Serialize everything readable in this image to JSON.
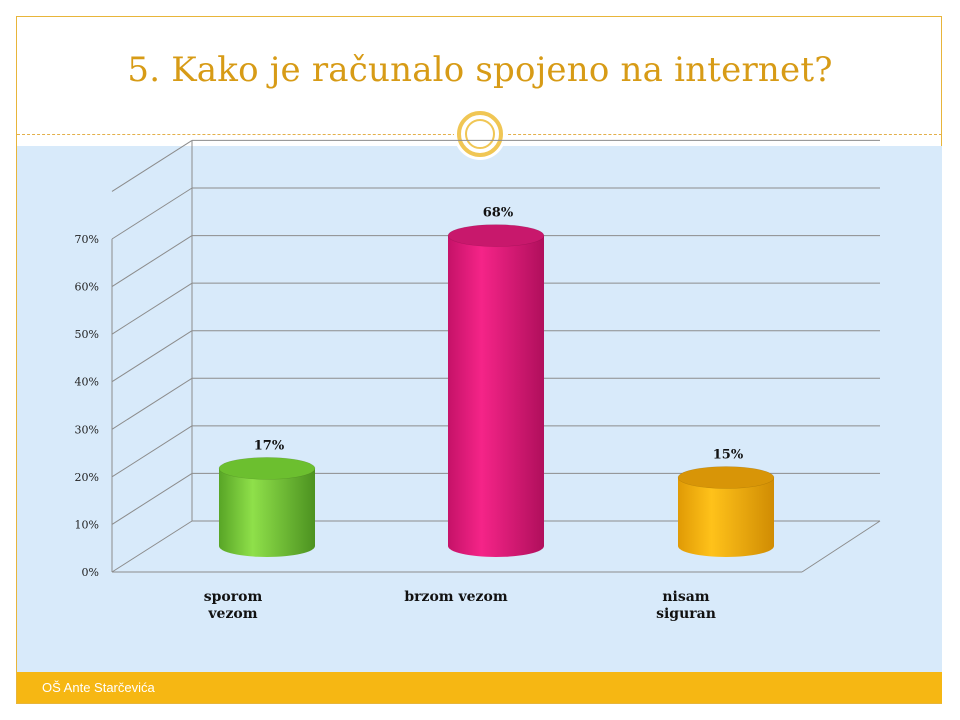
{
  "slide": {
    "title": "5. Kako je računalo spojeno na internet?",
    "footer": "OŠ Ante Starčevića"
  },
  "colors": {
    "accent": "#d79b16",
    "footer_bar": "#f6b713",
    "chart_background": "#d8eafa"
  },
  "chart_data": {
    "type": "bar",
    "style": "3d-cylinder",
    "title": "",
    "xlabel": "",
    "ylabel": "",
    "categories": [
      "sporom vezom",
      "brzom vezom",
      "nisam siguran"
    ],
    "category_lines": [
      [
        "sporom",
        "vezom"
      ],
      [
        "brzom vezom"
      ],
      [
        "nisam",
        "siguran"
      ]
    ],
    "values": [
      17,
      68,
      15
    ],
    "data_labels": [
      "17%",
      "68%",
      "15%"
    ],
    "bar_colors": [
      "#7dd33a",
      "#ea1a7a",
      "#f5b30a"
    ],
    "ylim": [
      0,
      70
    ],
    "yticks": [
      0,
      10,
      20,
      30,
      40,
      50,
      60,
      70
    ],
    "ytick_labels": [
      "0%",
      "10%",
      "20%",
      "30%",
      "40%",
      "50%",
      "60%",
      "70%"
    ],
    "grid": true,
    "legend": "none"
  }
}
